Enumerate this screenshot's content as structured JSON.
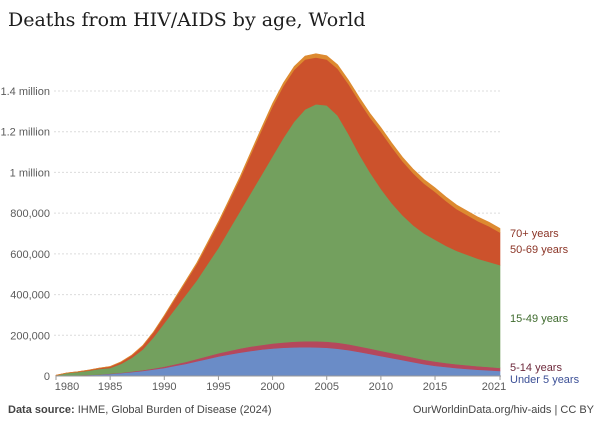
{
  "chart_data": {
    "type": "area",
    "stacked": true,
    "title": "Deaths from HIV/AIDS by age, World",
    "xlabel": "",
    "ylabel": "",
    "ylim": [
      0,
      1600000
    ],
    "xlim": [
      1980,
      2021
    ],
    "grid": true,
    "legend": "right-inline-labels",
    "y_ticks": [
      {
        "value": 0,
        "label": "0"
      },
      {
        "value": 200000,
        "label": "200,000"
      },
      {
        "value": 400000,
        "label": "400,000"
      },
      {
        "value": 600000,
        "label": "600,000"
      },
      {
        "value": 800000,
        "label": "800,000"
      },
      {
        "value": 1000000,
        "label": "1 million"
      },
      {
        "value": 1200000,
        "label": "1.2 million"
      },
      {
        "value": 1400000,
        "label": "1.4 million"
      }
    ],
    "x_ticks": [
      "1980",
      "1985",
      "1990",
      "1995",
      "2000",
      "2005",
      "2010",
      "2015",
      "2021"
    ],
    "x": [
      1980,
      1981,
      1982,
      1983,
      1984,
      1985,
      1986,
      1987,
      1988,
      1989,
      1990,
      1991,
      1992,
      1993,
      1994,
      1995,
      1996,
      1997,
      1998,
      1999,
      2000,
      2001,
      2002,
      2003,
      2004,
      2005,
      2006,
      2007,
      2008,
      2009,
      2010,
      2011,
      2012,
      2013,
      2014,
      2015,
      2016,
      2017,
      2018,
      2019,
      2020,
      2021
    ],
    "series": [
      {
        "name": "Under 5 years",
        "color": "#6a8cc7",
        "label_color": "#3b4f96",
        "values": [
          1000,
          2000,
          3000,
          5000,
          7000,
          10000,
          14000,
          19000,
          25000,
          32000,
          40000,
          50000,
          60000,
          72000,
          84000,
          96000,
          106000,
          115000,
          123000,
          130000,
          135000,
          139000,
          141000,
          142000,
          141000,
          139000,
          134000,
          127000,
          118000,
          108000,
          98000,
          88000,
          78000,
          68000,
          58000,
          50000,
          44000,
          39000,
          35000,
          31000,
          28000,
          25000
        ]
      },
      {
        "name": "5-14 years",
        "color": "#b5485c",
        "label_color": "#6e2a3c",
        "values": [
          0,
          0,
          1000,
          1000,
          1000,
          2000,
          2000,
          3000,
          4000,
          5000,
          6000,
          8000,
          10000,
          12000,
          14000,
          16000,
          18000,
          20000,
          22000,
          23000,
          25000,
          26000,
          28000,
          29000,
          30000,
          30000,
          30000,
          29000,
          28000,
          27000,
          26000,
          25000,
          24000,
          23000,
          22000,
          21000,
          20000,
          19000,
          18000,
          17000,
          16000,
          15000
        ]
      },
      {
        "name": "15-49 years",
        "color": "#73a05e",
        "label_color": "#3f6b2e",
        "values": [
          2000,
          12000,
          15000,
          20000,
          27000,
          28000,
          44000,
          68000,
          101000,
          153000,
          214000,
          272000,
          330000,
          386000,
          452000,
          518000,
          596000,
          675000,
          755000,
          837000,
          920000,
          1005000,
          1081000,
          1139000,
          1164000,
          1161000,
          1116000,
          1034000,
          944000,
          865000,
          796000,
          737000,
          688000,
          649000,
          620000,
          599000,
          576000,
          557000,
          542000,
          527000,
          516000,
          505000
        ]
      },
      {
        "name": "50-69 years",
        "color": "#cc522c",
        "label_color": "#8b3426",
        "values": [
          1000,
          1000,
          2000,
          3000,
          4000,
          6000,
          9000,
          12000,
          18000,
          25000,
          35000,
          50000,
          65000,
          80000,
          100000,
          120000,
          140000,
          160000,
          190000,
          220000,
          245000,
          255000,
          255000,
          245000,
          230000,
          225000,
          230000,
          245000,
          260000,
          270000,
          280000,
          275000,
          265000,
          255000,
          245000,
          235000,
          220000,
          205000,
          195000,
          185000,
          175000,
          160000
        ]
      },
      {
        "name": "70+ years",
        "color": "#dd8a30",
        "label_color": "#8b3426",
        "values": [
          0,
          0,
          0,
          0,
          0,
          1000,
          1000,
          1000,
          2000,
          2000,
          3000,
          4000,
          5000,
          6000,
          7000,
          8000,
          9000,
          10000,
          11000,
          12000,
          14000,
          15000,
          16000,
          17000,
          18000,
          19000,
          19000,
          19000,
          19000,
          20000,
          20000,
          20000,
          20000,
          20000,
          20000,
          20000,
          20000,
          20000,
          20000,
          20000,
          20000,
          20000
        ]
      }
    ]
  },
  "footer": {
    "source_label": "Data source:",
    "source_text": "IHME, Global Burden of Disease (2024)",
    "credit": "OurWorldinData.org/hiv-aids | CC BY"
  }
}
